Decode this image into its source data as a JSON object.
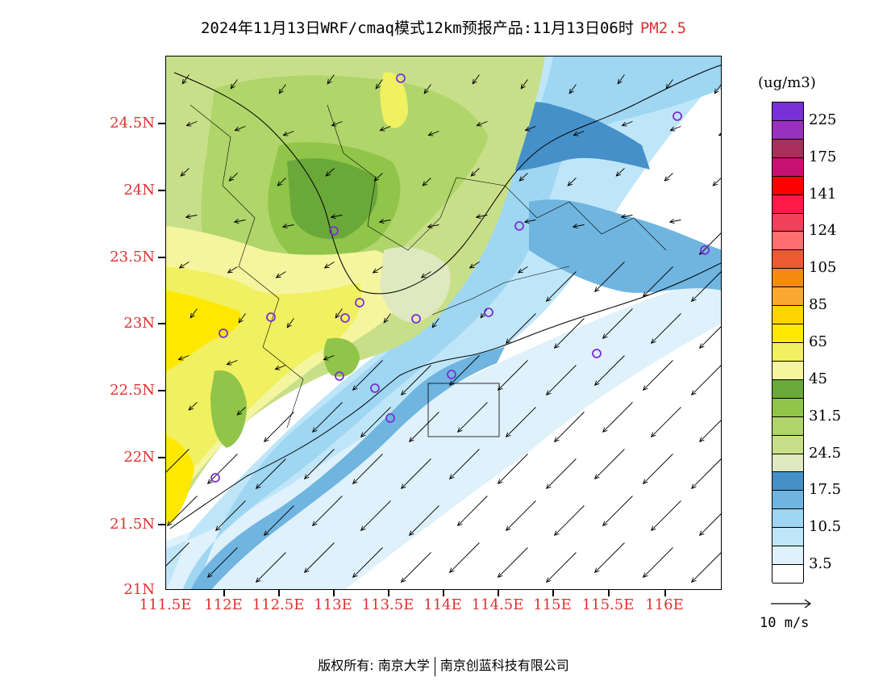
{
  "title": {
    "main": "2024年11月13日WRF/cmaq模式12km预报产品:11月13日06时",
    "pollutant": "PM2.5"
  },
  "axes": {
    "lat_labels": [
      "24.5N",
      "24N",
      "23.5N",
      "23N",
      "22.5N",
      "22N",
      "21.5N",
      "21N"
    ],
    "lon_labels": [
      "111.5E",
      "112E",
      "112.5E",
      "113E",
      "113.5E",
      "114E",
      "114.5E",
      "115E",
      "115.5E",
      "116E"
    ]
  },
  "colorbar": {
    "unit": "(ug/m3)",
    "colors": [
      "#ffffff",
      "#dff1fb",
      "#bfe6f8",
      "#9fd6f2",
      "#6fb5e0",
      "#4590c8",
      "#dfe8bf",
      "#c8df8a",
      "#b0d56a",
      "#90c54a",
      "#6aa83a",
      "#f5f5a0",
      "#f0f060",
      "#ffe800",
      "#ffd400",
      "#f9a830",
      "#f58a10",
      "#ee5a30",
      "#ff6f6f",
      "#f0405a",
      "#ff1a4a",
      "#ff0000",
      "#c81070",
      "#a8305a",
      "#9a30c0",
      "#7a30d8"
    ],
    "labels": [
      "3.5",
      "10.5",
      "17.5",
      "24.5",
      "31.5",
      "45",
      "65",
      "85",
      "105",
      "124",
      "141",
      "175",
      "225"
    ]
  },
  "wind": {
    "reference_label": "10 m/s"
  },
  "footer": {
    "copyright": "版权所有: 南京大学",
    "company": "南京创蓝科技有限公司"
  }
}
